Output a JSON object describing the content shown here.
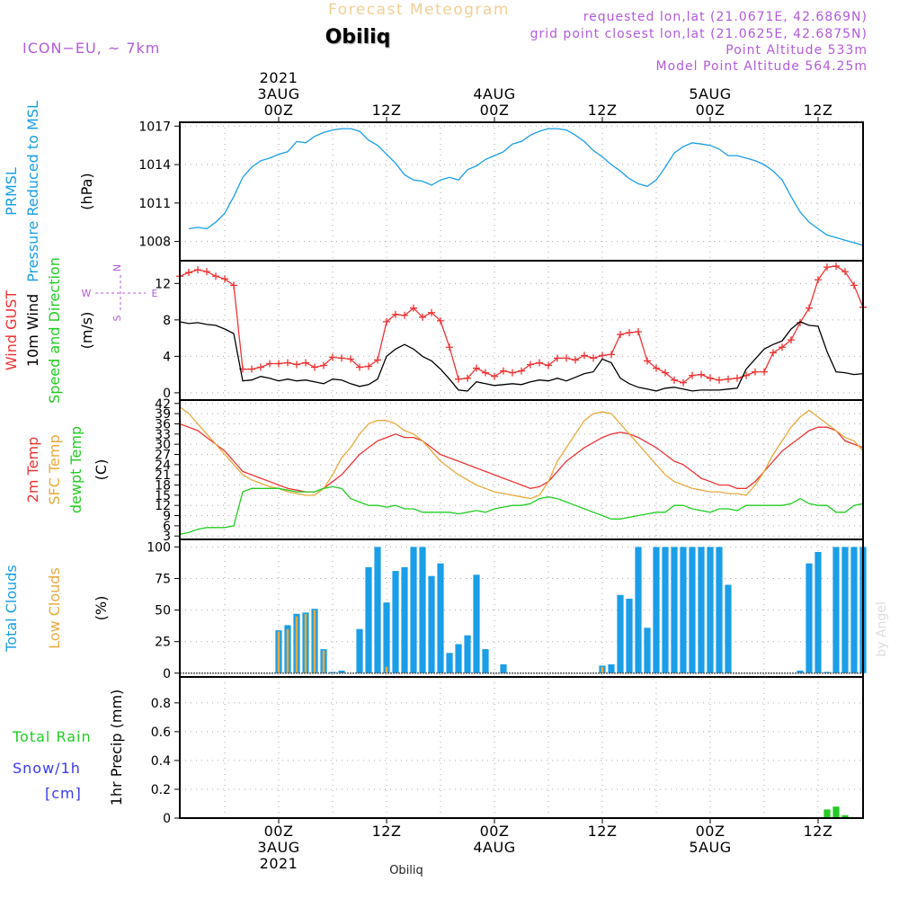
{
  "header": {
    "title": "Forecast Meteogram",
    "location": "Obiliq",
    "model": "ICON−EU, ~ 7km",
    "info": [
      "requested lon,lat (21.0671E, 42.6869N)",
      "grid point closest lon,lat (21.0625E, 42.6875N)",
      "Point Altitude 533m",
      "Model Point Altitude 564.25m"
    ]
  },
  "footer": {
    "location": "Obiliq",
    "watermark": "by Angel"
  },
  "time_axis": {
    "top_labels": [
      {
        "hour": 0,
        "lines": [
          "2021",
          "3AUG",
          "00Z"
        ]
      },
      {
        "hour": 12,
        "lines": [
          "12Z"
        ]
      },
      {
        "hour": 24,
        "lines": [
          "4AUG",
          "00Z"
        ]
      },
      {
        "hour": 36,
        "lines": [
          "12Z"
        ]
      },
      {
        "hour": 48,
        "lines": [
          "5AUG",
          "00Z"
        ]
      },
      {
        "hour": 60,
        "lines": [
          "12Z"
        ]
      }
    ],
    "bottom_labels": [
      {
        "hour": 0,
        "lines": [
          "00Z",
          "3AUG",
          "2021"
        ]
      },
      {
        "hour": 12,
        "lines": [
          "12Z"
        ]
      },
      {
        "hour": 24,
        "lines": [
          "00Z",
          "4AUG"
        ]
      },
      {
        "hour": 36,
        "lines": [
          "12Z"
        ]
      },
      {
        "hour": 48,
        "lines": [
          "00Z",
          "5AUG"
        ]
      },
      {
        "hour": 60,
        "lines": [
          "12Z"
        ]
      }
    ],
    "range_hours": [
      -11,
      65
    ]
  },
  "chart_data": [
    {
      "type": "line",
      "id": "pressure",
      "ylabel_lines": [
        [
          "PRMSL"
        ],
        [
          "Pressure Reduced to MSL"
        ],
        [
          "(hPa)"
        ]
      ],
      "ylim": [
        1006.5,
        1017.3
      ],
      "yticks": [
        1008,
        1011,
        1014,
        1017
      ],
      "grid": true,
      "colors": {
        "prmsl": "#1a9ee8"
      },
      "x": [
        -10,
        -9,
        -8,
        -7,
        -6,
        -5,
        -4,
        -3,
        -2,
        -1,
        0,
        1,
        2,
        3,
        4,
        5,
        6,
        7,
        8,
        9,
        10,
        11,
        12,
        13,
        14,
        15,
        16,
        17,
        18,
        19,
        20,
        21,
        22,
        23,
        24,
        25,
        26,
        27,
        28,
        29,
        30,
        31,
        32,
        33,
        34,
        35,
        36,
        37,
        38,
        39,
        40,
        41,
        42,
        43,
        44,
        45,
        46,
        47,
        48,
        49,
        50,
        51,
        52,
        53,
        54,
        55,
        56,
        57,
        58,
        59,
        60,
        61,
        62,
        63,
        64,
        65
      ],
      "series": [
        {
          "name": "PRMSL",
          "values": [
            1009.0,
            1009.1,
            1009.0,
            1009.5,
            1010.2,
            1011.5,
            1013.0,
            1013.8,
            1014.3,
            1014.5,
            1014.8,
            1015.0,
            1015.8,
            1015.7,
            1016.2,
            1016.5,
            1016.7,
            1016.8,
            1016.8,
            1016.6,
            1015.9,
            1015.5,
            1014.8,
            1014.1,
            1013.2,
            1012.8,
            1012.7,
            1012.4,
            1012.8,
            1013.0,
            1012.8,
            1013.6,
            1013.9,
            1014.4,
            1014.7,
            1015.0,
            1015.6,
            1015.8,
            1016.3,
            1016.6,
            1016.8,
            1016.8,
            1016.7,
            1016.3,
            1015.8,
            1015.1,
            1014.6,
            1014.0,
            1013.5,
            1012.9,
            1012.5,
            1012.3,
            1012.8,
            1013.8,
            1014.9,
            1015.4,
            1015.7,
            1015.6,
            1015.5,
            1015.2,
            1014.7,
            1014.7,
            1014.5,
            1014.3,
            1014.0,
            1013.5,
            1012.8,
            1011.5,
            1010.3,
            1009.5,
            1009.0,
            1008.5,
            1008.3,
            1008.1,
            1007.9,
            1007.7
          ]
        }
      ]
    },
    {
      "type": "line",
      "id": "wind",
      "ylabel_lines": [
        [
          "Wind GUST"
        ],
        [
          "10m Wind"
        ],
        [
          "Speed and Direction"
        ],
        [
          "(m/s)"
        ]
      ],
      "compass": [
        "N",
        "S",
        "W",
        "E"
      ],
      "ylim": [
        -0.8,
        14.5
      ],
      "yticks": [
        0,
        4,
        8,
        12
      ],
      "grid": true,
      "colors": {
        "gust": "#ee3333",
        "wind": "#000000"
      },
      "x": [
        -11,
        -10,
        -9,
        -8,
        -7,
        -6,
        -5,
        -4,
        -3,
        -2,
        -1,
        0,
        1,
        2,
        3,
        4,
        5,
        6,
        7,
        8,
        9,
        10,
        11,
        12,
        13,
        14,
        15,
        16,
        17,
        18,
        19,
        20,
        21,
        22,
        23,
        24,
        25,
        26,
        27,
        28,
        29,
        30,
        31,
        32,
        33,
        34,
        35,
        36,
        37,
        38,
        39,
        40,
        41,
        42,
        43,
        44,
        45,
        46,
        47,
        48,
        49,
        50,
        51,
        52,
        53,
        54,
        55,
        56,
        57,
        58,
        59,
        60,
        61,
        62,
        63,
        64,
        65
      ],
      "series": [
        {
          "name": "Wind GUST",
          "values": [
            12.8,
            13.2,
            13.5,
            13.3,
            12.8,
            12.5,
            11.8,
            2.6,
            2.6,
            2.8,
            3.2,
            3.2,
            3.3,
            3.1,
            3.3,
            2.8,
            3.0,
            3.9,
            3.8,
            3.7,
            2.8,
            2.9,
            3.6,
            7.8,
            8.6,
            8.5,
            9.3,
            8.3,
            8.8,
            7.9,
            5.0,
            1.5,
            1.6,
            2.7,
            2.2,
            1.8,
            2.4,
            2.2,
            2.4,
            3.1,
            3.3,
            3.0,
            3.8,
            3.8,
            3.6,
            4.1,
            3.8,
            4.1,
            4.2,
            6.4,
            6.6,
            6.7,
            3.5,
            2.7,
            2.2,
            1.4,
            1.1,
            1.9,
            2.0,
            1.6,
            1.4,
            1.5,
            1.6,
            1.9,
            2.3,
            2.3,
            4.4,
            5.0,
            5.8,
            7.7,
            9.3,
            12.4,
            13.8,
            13.9,
            13.3,
            11.8,
            9.4
          ]
        },
        {
          "name": "10m Wind",
          "values": [
            7.8,
            7.6,
            7.7,
            7.5,
            7.4,
            7.0,
            6.5,
            1.3,
            1.4,
            1.8,
            1.6,
            1.3,
            1.5,
            1.3,
            1.4,
            1.2,
            1.0,
            1.5,
            1.4,
            1.0,
            0.7,
            0.9,
            1.5,
            4.0,
            4.8,
            5.3,
            4.8,
            4.0,
            3.5,
            2.6,
            1.5,
            0.3,
            0.2,
            1.2,
            1.0,
            0.8,
            0.9,
            1.0,
            0.9,
            1.2,
            1.4,
            1.3,
            1.6,
            1.3,
            1.7,
            2.1,
            2.3,
            3.7,
            3.3,
            1.6,
            1.0,
            0.6,
            0.4,
            0.2,
            0.5,
            0.6,
            0.4,
            0.2,
            0.3,
            0.3,
            0.3,
            0.4,
            0.5,
            2.6,
            3.7,
            4.8,
            5.3,
            5.7,
            7.0,
            7.8,
            7.4,
            7.3,
            4.5,
            2.3,
            2.2,
            2.0,
            2.1
          ]
        }
      ]
    },
    {
      "type": "line",
      "id": "temperature",
      "ylabel_lines": [
        [
          "2m Temp"
        ],
        [
          "SFC Temp"
        ],
        [
          "dewpt Temp"
        ],
        [
          "(C)"
        ]
      ],
      "ylim": [
        2,
        43
      ],
      "yticks": [
        3,
        6,
        9,
        12,
        15,
        18,
        21,
        24,
        27,
        30,
        33,
        36,
        39,
        42
      ],
      "grid": true,
      "colors": {
        "t2m": "#ee3333",
        "sfc": "#e8a93b",
        "dew": "#22cc22"
      },
      "x": [
        -11,
        -10,
        -9,
        -8,
        -7,
        -6,
        -5,
        -4,
        -3,
        -2,
        -1,
        0,
        1,
        2,
        3,
        4,
        5,
        6,
        7,
        8,
        9,
        10,
        11,
        12,
        13,
        14,
        15,
        16,
        17,
        18,
        19,
        20,
        21,
        22,
        23,
        24,
        25,
        26,
        27,
        28,
        29,
        30,
        31,
        32,
        33,
        34,
        35,
        36,
        37,
        38,
        39,
        40,
        41,
        42,
        43,
        44,
        45,
        46,
        47,
        48,
        49,
        50,
        51,
        52,
        53,
        54,
        55,
        56,
        57,
        58,
        59,
        60,
        61,
        62,
        63,
        64,
        65
      ],
      "series": [
        {
          "name": "2m Temp",
          "values": [
            36,
            35,
            34,
            32,
            30,
            28,
            25,
            22,
            21,
            20,
            19,
            18,
            17,
            16.5,
            16,
            16,
            17,
            19,
            21,
            24,
            27,
            29,
            31,
            32,
            33,
            32,
            32,
            31,
            29,
            27,
            26,
            25,
            24,
            23,
            22,
            21,
            20,
            19,
            18,
            17,
            17.5,
            19,
            22,
            25,
            27,
            29,
            30.5,
            32,
            33,
            33.5,
            33,
            32,
            30.5,
            29,
            27,
            25,
            24,
            22,
            20,
            19,
            18,
            18,
            17,
            17,
            19,
            22,
            25,
            28,
            30,
            32,
            34,
            35,
            35,
            34,
            31,
            30,
            29
          ]
        },
        {
          "name": "SFC Temp",
          "values": [
            41,
            39,
            36,
            33,
            30,
            27,
            24,
            21,
            19.5,
            18.5,
            17.5,
            17,
            16,
            15.5,
            15,
            15,
            17,
            21,
            26,
            29,
            33,
            36,
            37,
            37,
            36,
            34,
            33,
            31,
            28,
            25,
            23,
            21,
            19.5,
            18,
            17,
            16,
            15.5,
            15,
            14.5,
            14,
            15,
            19,
            25,
            29,
            33,
            37,
            39,
            39.5,
            39,
            36,
            33,
            30,
            27,
            24,
            21,
            19,
            18,
            17,
            16.5,
            16,
            16,
            15.5,
            15.5,
            15,
            18,
            22,
            27,
            31,
            35,
            38,
            40,
            38,
            36,
            34,
            32,
            31,
            28
          ]
        },
        {
          "name": "dewpt Temp",
          "values": [
            3.5,
            4,
            5,
            5.5,
            5.5,
            5.5,
            6,
            16,
            17,
            17,
            17,
            17,
            16.5,
            16,
            16,
            16,
            17,
            17.5,
            17,
            14,
            13,
            12,
            12,
            11.5,
            12,
            11,
            11,
            10,
            10,
            10,
            10,
            9.5,
            10,
            10.5,
            10,
            11,
            11.5,
            12,
            12,
            12.5,
            14,
            14.5,
            14,
            13,
            12,
            11,
            10,
            9,
            8,
            8,
            8.5,
            9,
            9.5,
            10,
            10,
            12,
            12,
            11,
            10.5,
            10,
            11,
            11,
            10.5,
            12,
            12,
            12,
            12,
            12,
            12.5,
            14,
            12.5,
            12,
            12,
            10,
            10,
            12,
            12.5
          ]
        }
      ]
    },
    {
      "type": "bar",
      "id": "clouds",
      "ylabel_lines": [
        [
          "Total Clouds"
        ],
        [
          "Low Clouds"
        ],
        [
          "(%)"
        ]
      ],
      "ylim": [
        -3,
        106
      ],
      "yticks": [
        0,
        25,
        50,
        75,
        100
      ],
      "grid": true,
      "colors": {
        "total": "#1a9ee8",
        "low": "#e8a93b"
      },
      "x": [
        0,
        1,
        2,
        3,
        4,
        5,
        6,
        7,
        8,
        9,
        10,
        11,
        12,
        13,
        14,
        15,
        16,
        17,
        18,
        19,
        20,
        21,
        22,
        23,
        24,
        25,
        26,
        27,
        28,
        29,
        30,
        31,
        32,
        33,
        34,
        35,
        36,
        37,
        38,
        39,
        40,
        41,
        42,
        43,
        44,
        45,
        46,
        47,
        48,
        49,
        50,
        51,
        52,
        53,
        54,
        55,
        56,
        57,
        58,
        59,
        60,
        61,
        62,
        63,
        64,
        65
      ],
      "series": [
        {
          "name": "Total Clouds",
          "values": [
            34,
            38,
            47,
            48,
            51,
            19,
            1,
            2,
            0,
            35,
            84,
            100,
            56,
            81,
            84,
            100,
            100,
            77,
            87,
            16,
            23,
            30,
            78,
            19,
            0,
            7,
            0,
            0,
            0,
            0,
            0,
            0,
            0,
            0,
            0,
            0,
            6,
            7,
            62,
            59,
            100,
            36,
            100,
            100,
            100,
            100,
            100,
            100,
            100,
            100,
            70,
            0,
            0,
            0,
            0,
            0,
            0,
            0,
            2,
            87,
            96,
            1,
            100,
            100,
            100,
            100
          ]
        },
        {
          "name": "Low Clouds",
          "values": [
            33,
            35,
            45,
            47,
            50,
            18,
            0,
            0,
            0,
            0,
            0,
            0,
            5,
            0,
            0,
            0,
            0,
            0,
            0,
            0,
            0,
            0,
            0,
            0,
            0,
            0,
            0,
            0,
            0,
            0,
            0,
            0,
            0,
            0,
            0,
            0,
            5,
            0,
            0,
            0,
            0,
            0,
            0,
            0,
            0,
            0,
            0,
            0,
            0,
            0,
            0,
            0,
            0,
            0,
            0,
            0,
            0,
            0,
            0,
            0,
            0,
            0,
            0,
            0,
            0,
            0
          ]
        }
      ]
    },
    {
      "type": "bar",
      "id": "precip",
      "ylabel_lines": [
        [
          "1hr Precip (mm)"
        ]
      ],
      "side_labels": [
        [
          "Total",
          "Rain"
        ],
        [
          "Snow/1h"
        ],
        [
          "[cm]"
        ]
      ],
      "ylim": [
        0,
        0.98
      ],
      "yticks": [
        0,
        0.2,
        0.4,
        0.6,
        0.8
      ],
      "grid": true,
      "colors": {
        "rain": "#22cc22",
        "snow": "#3a3aee"
      },
      "x": [
        61,
        62,
        63
      ],
      "series": [
        {
          "name": "Total Rain",
          "values": [
            0.06,
            0.08,
            0.02
          ]
        }
      ]
    }
  ]
}
